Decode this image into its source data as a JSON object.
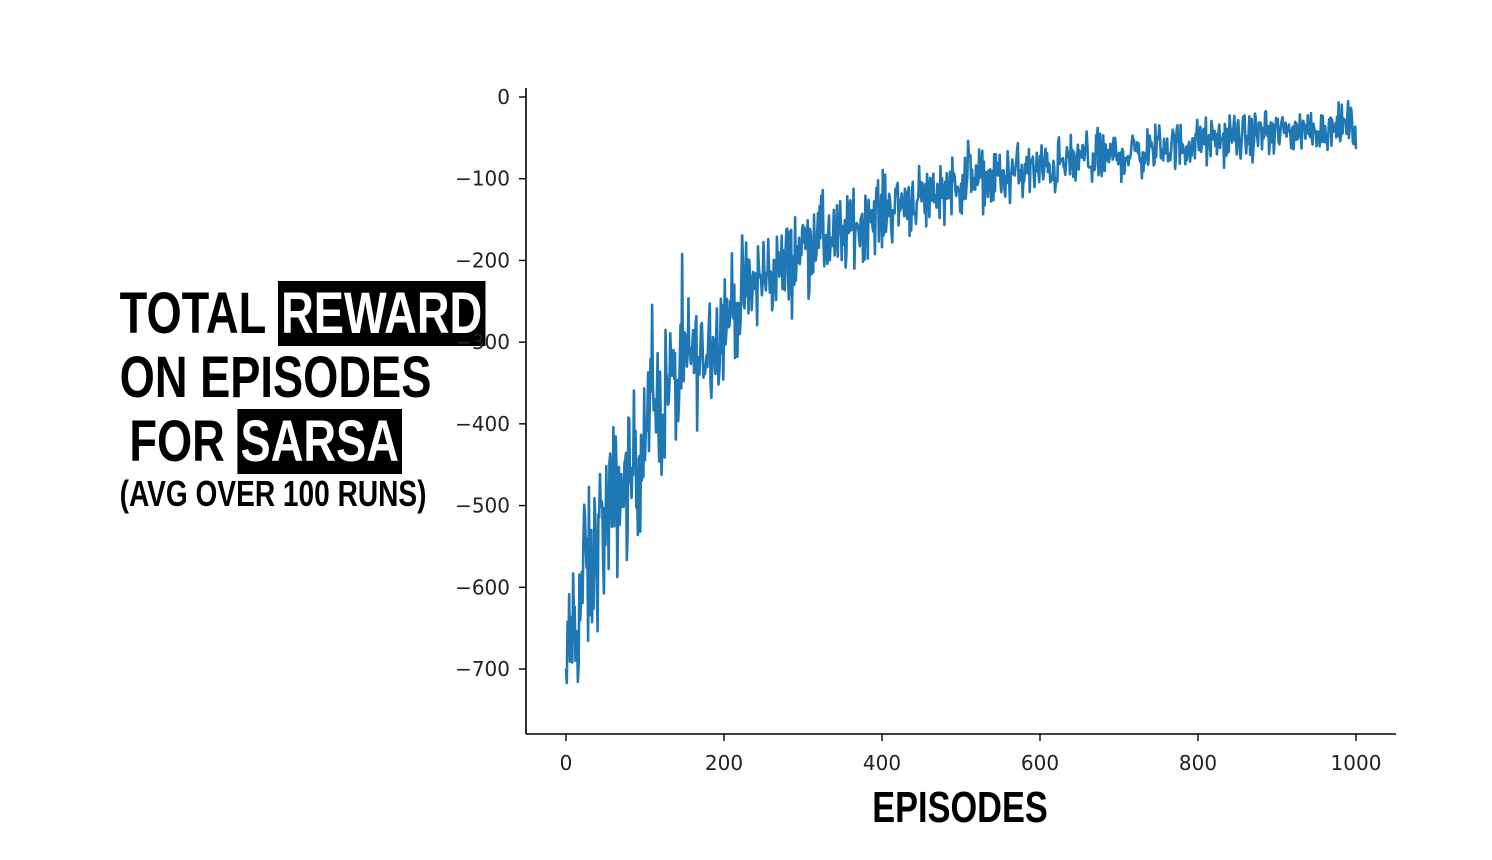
{
  "title": {
    "line1_plain": "TOTAL",
    "line1_highlight": "REWARD",
    "line2_plain": "ON EPISODES",
    "line3_plain": "FOR",
    "line3_highlight": "SARSA",
    "line4": "(AVG OVER 100 RUNS)"
  },
  "colors": {
    "series": "#1f77b4",
    "highlight_bg": "#000000",
    "highlight_text": "#ffffff"
  },
  "chart_data": {
    "type": "line",
    "xlabel": "EPISODES",
    "ylabel": "",
    "xlim": [
      -50,
      1050
    ],
    "ylim": [
      -780,
      10
    ],
    "xticks": [
      0,
      200,
      400,
      600,
      800,
      1000
    ],
    "xtick_labels": [
      "0",
      "200",
      "400",
      "600",
      "800",
      "1000"
    ],
    "yticks": [
      0,
      -100,
      -200,
      -300,
      -400,
      -500,
      -600,
      -700
    ],
    "ytick_labels": [
      "0",
      "−100",
      "−200",
      "−300",
      "−400",
      "−500",
      "−600",
      "−700"
    ],
    "grid": false,
    "series": [
      {
        "color": "#1f77b4",
        "x": [
          0,
          2,
          4,
          6,
          8,
          10,
          15,
          20,
          25,
          30,
          40,
          50,
          60,
          70,
          80,
          90,
          100,
          110,
          120,
          130,
          140,
          150,
          160,
          170,
          180,
          190,
          200,
          220,
          240,
          260,
          280,
          300,
          320,
          340,
          360,
          380,
          400,
          420,
          440,
          460,
          480,
          500,
          520,
          540,
          560,
          580,
          600,
          620,
          640,
          660,
          680,
          700,
          720,
          740,
          760,
          780,
          800,
          820,
          840,
          860,
          880,
          900,
          920,
          940,
          960,
          980,
          1000
        ],
        "y": [
          -710,
          -730,
          -650,
          -690,
          -620,
          -700,
          -640,
          -600,
          -570,
          -600,
          -540,
          -520,
          -500,
          -480,
          -470,
          -440,
          -420,
          -360,
          -390,
          -340,
          -360,
          -330,
          -310,
          -330,
          -290,
          -300,
          -270,
          -250,
          -230,
          -210,
          -210,
          -180,
          -170,
          -180,
          -160,
          -150,
          -140,
          -130,
          -125,
          -120,
          -110,
          -105,
          -100,
          -100,
          -95,
          -90,
          -90,
          -85,
          -80,
          -75,
          -75,
          -70,
          -70,
          -65,
          -60,
          -60,
          -55,
          -55,
          -50,
          -50,
          -45,
          -45,
          -40,
          -40,
          -40,
          -35,
          -35
        ]
      }
    ]
  }
}
